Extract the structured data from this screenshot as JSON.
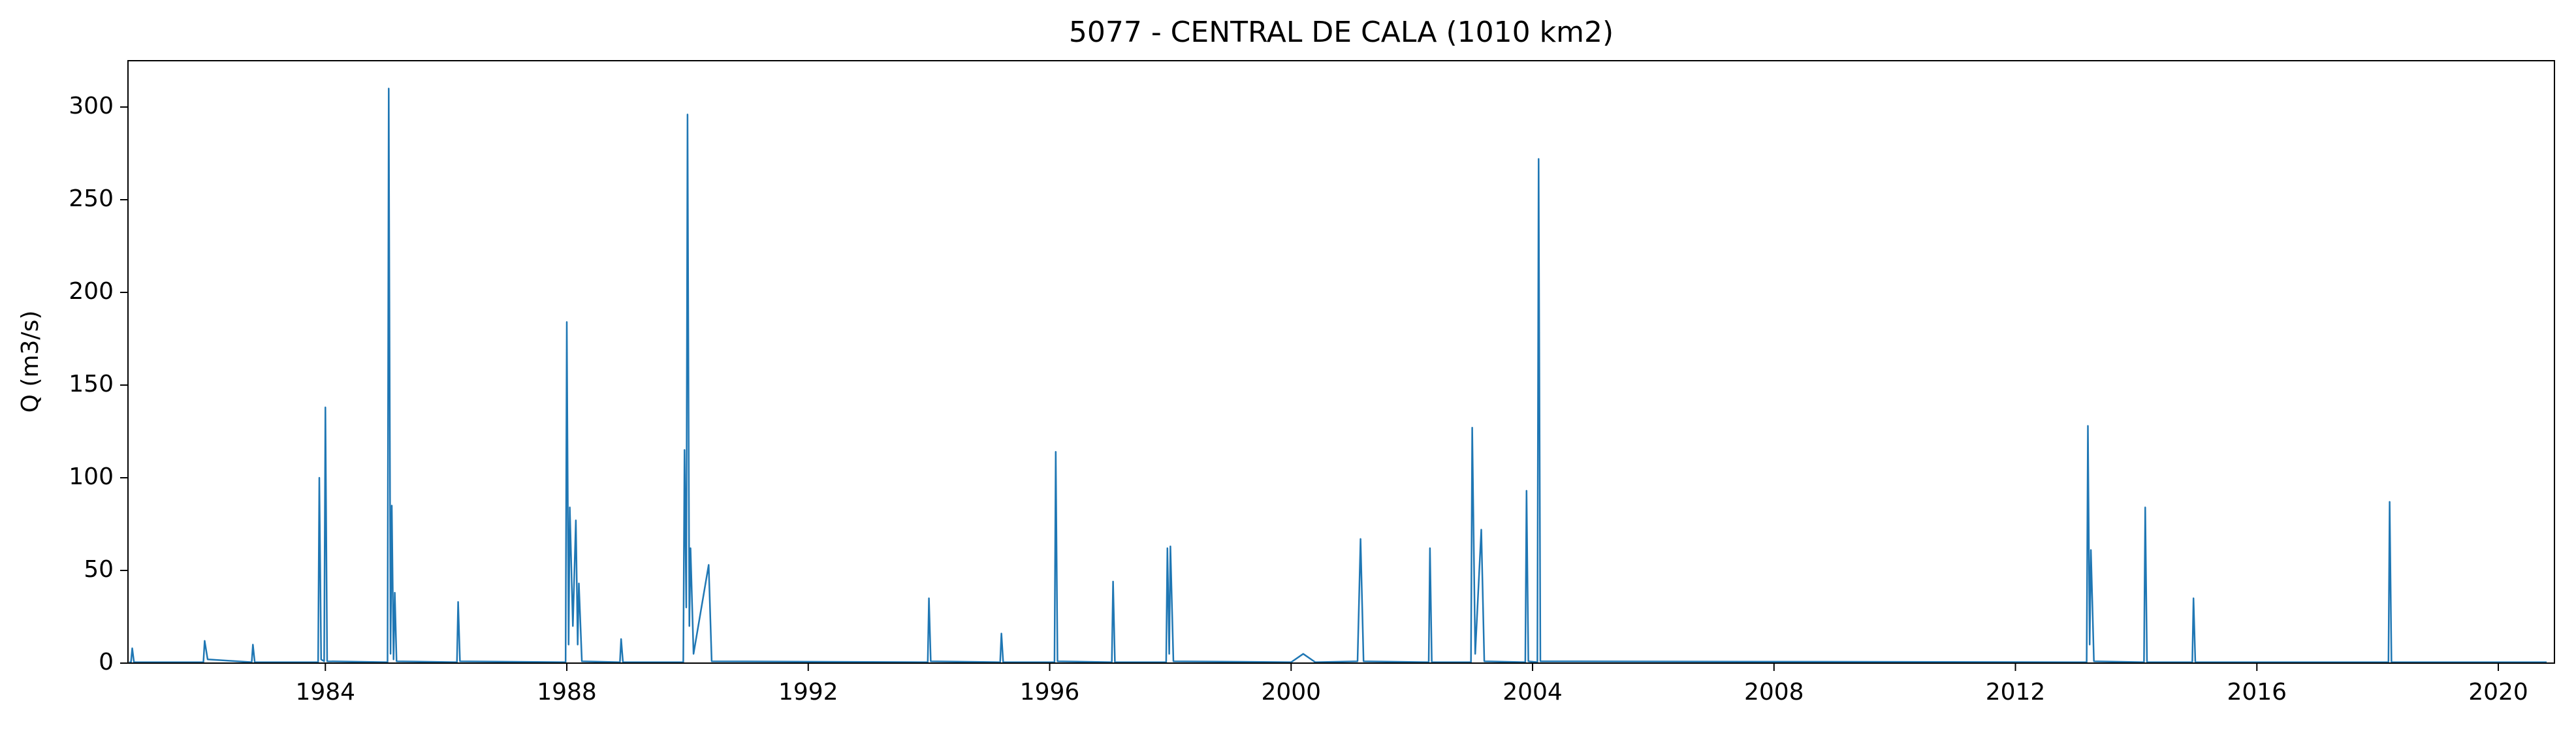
{
  "chart_data": {
    "type": "line",
    "title": "5077 - CENTRAL DE CALA (1010 km2)",
    "ylabel": "Q (m3/s)",
    "xlim": [
      1980.73,
      2020.93
    ],
    "xticks": [
      1984,
      1988,
      1992,
      1996,
      2000,
      2004,
      2008,
      2012,
      2016,
      2020
    ],
    "ylim": [
      0,
      325
    ],
    "yticks": [
      0,
      50,
      100,
      150,
      200,
      250,
      300
    ],
    "grid": false,
    "x": [
      1980.75,
      1980.78,
      1980.8,
      1980.83,
      1981.98,
      1982.0,
      1982.05,
      1982.78,
      1982.8,
      1982.83,
      1983.88,
      1983.9,
      1983.93,
      1983.98,
      1984.0,
      1984.03,
      1985.03,
      1985.05,
      1985.08,
      1985.1,
      1985.13,
      1985.15,
      1985.18,
      1986.18,
      1986.2,
      1986.23,
      1987.98,
      1988.0,
      1988.03,
      1988.05,
      1988.1,
      1988.15,
      1988.18,
      1988.2,
      1988.25,
      1988.88,
      1988.9,
      1988.93,
      1989.93,
      1989.95,
      1989.98,
      1990.0,
      1990.03,
      1990.05,
      1990.1,
      1990.35,
      1990.4,
      1993.98,
      1994.0,
      1994.03,
      1995.18,
      1995.2,
      1995.23,
      1996.08,
      1996.1,
      1996.13,
      1997.03,
      1997.05,
      1997.08,
      1997.93,
      1997.95,
      1997.98,
      1998.0,
      1998.05,
      2000.0,
      2000.2,
      2000.4,
      2001.1,
      2001.15,
      2001.2,
      2002.28,
      2002.3,
      2002.33,
      2002.98,
      2003.0,
      2003.05,
      2003.15,
      2003.2,
      2003.88,
      2003.9,
      2003.93,
      2004.08,
      2004.1,
      2004.13,
      2013.18,
      2013.2,
      2013.23,
      2013.25,
      2013.3,
      2014.13,
      2014.15,
      2014.18,
      2014.93,
      2014.95,
      2014.98,
      2018.18,
      2018.2,
      2018.23,
      2020.8
    ],
    "series": [
      {
        "color": "#1f77b4",
        "values": [
          0.5,
          0.5,
          8,
          0.5,
          0.5,
          12,
          2,
          0.5,
          10,
          0.5,
          0.5,
          100,
          2,
          1,
          138,
          1,
          0.5,
          310,
          5,
          85,
          2,
          38,
          1,
          0.5,
          33,
          1,
          0.5,
          184,
          10,
          84,
          20,
          77,
          10,
          43,
          1,
          0.5,
          13,
          0.5,
          0.5,
          115,
          30,
          296,
          20,
          62,
          5,
          53,
          1,
          0.5,
          35,
          1,
          0.5,
          16,
          0.5,
          0.5,
          114,
          1,
          0.5,
          44,
          0.5,
          0.5,
          62,
          5,
          63,
          1,
          0.5,
          5,
          0.5,
          1,
          67,
          1,
          0.5,
          62,
          0.5,
          0.5,
          127,
          5,
          72,
          1,
          0.5,
          93,
          1,
          0.5,
          272,
          1,
          0.5,
          128,
          10,
          61,
          1,
          0.5,
          84,
          0.5,
          0.5,
          35,
          0.5,
          0.5,
          87,
          0.5,
          0.5
        ]
      }
    ]
  }
}
